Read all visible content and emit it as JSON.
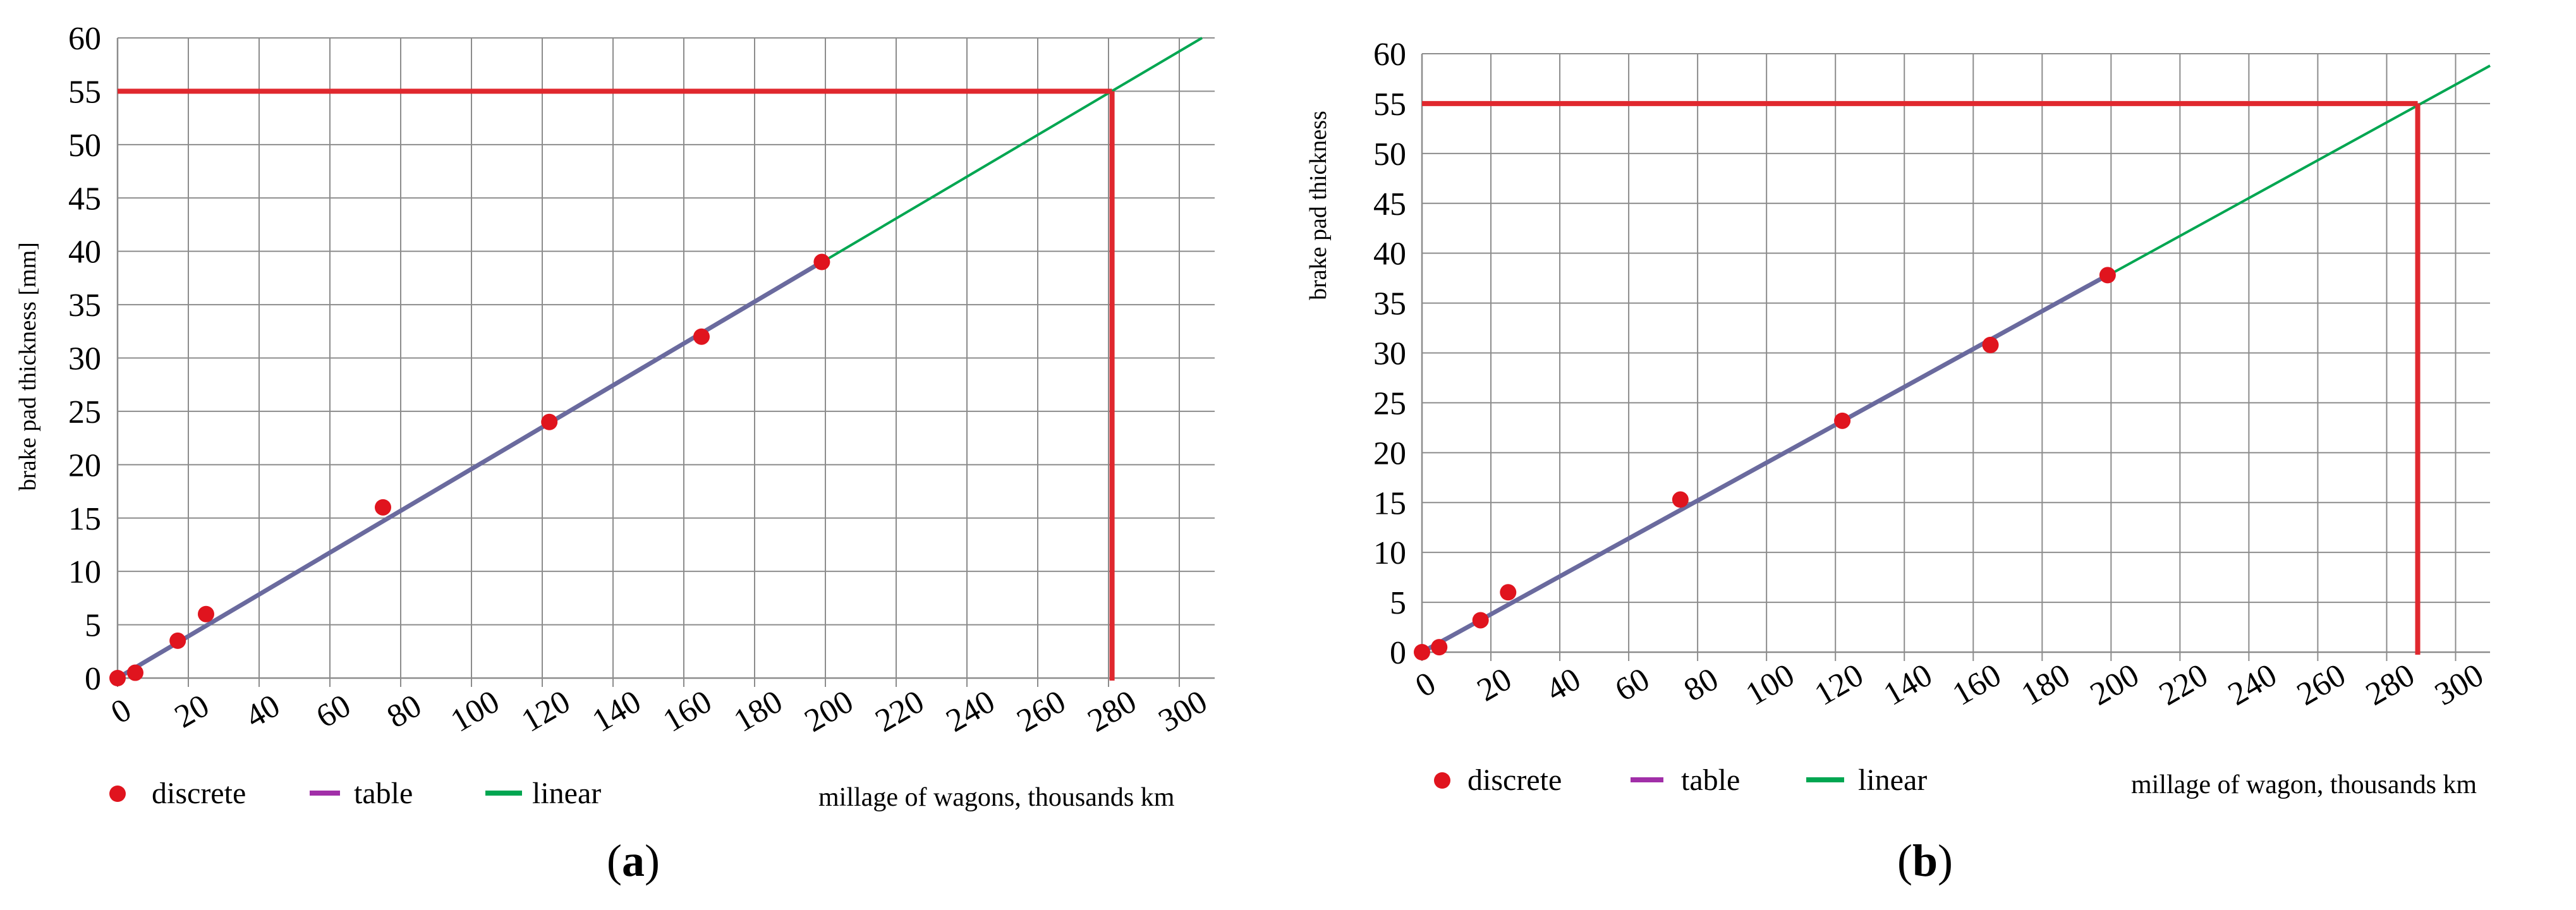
{
  "figure": {
    "panels": [
      "a",
      "b"
    ]
  },
  "colors": {
    "discrete": "#e0141e",
    "table": "#a12fa8",
    "linear": "#00a651",
    "threshold": "#e0282e",
    "grid": "#8c8c8c",
    "fit_line": "#6a6a9e"
  },
  "chart_data": [
    {
      "panel": "a",
      "type": "line",
      "panel_label": "a",
      "ylabel": "brake pad thickness [mm]",
      "xlabel": "millage of wagons, thousands km",
      "xlim": [
        0,
        310
      ],
      "ylim": [
        0,
        60
      ],
      "xticks": [
        0,
        20,
        40,
        60,
        80,
        100,
        120,
        140,
        160,
        180,
        200,
        220,
        240,
        260,
        280,
        300
      ],
      "yticks": [
        0,
        5,
        10,
        15,
        20,
        25,
        30,
        35,
        40,
        45,
        50,
        55,
        60
      ],
      "legend": [
        "discrete",
        "table",
        "linear"
      ],
      "series": [
        {
          "name": "discrete",
          "kind": "scatter",
          "x": [
            0,
            5,
            17,
            25,
            75,
            122,
            165,
            199
          ],
          "y": [
            0,
            0.5,
            3.5,
            6,
            16,
            24,
            32,
            39
          ]
        },
        {
          "name": "table",
          "kind": "line",
          "x": [
            0,
            199
          ],
          "y": [
            0,
            39
          ]
        },
        {
          "name": "linear",
          "kind": "line",
          "x": [
            0,
            310
          ],
          "y": [
            0,
            60.7
          ]
        }
      ],
      "threshold": {
        "y": 55,
        "x": 281
      }
    },
    {
      "panel": "b",
      "type": "line",
      "panel_label": "b",
      "ylabel": "brake pad thickness",
      "xlabel": "millage of wagon, thousands km",
      "xlim": [
        0,
        310
      ],
      "ylim": [
        0,
        60
      ],
      "xticks": [
        0,
        20,
        40,
        60,
        80,
        100,
        120,
        140,
        160,
        180,
        200,
        220,
        240,
        260,
        280,
        300
      ],
      "yticks": [
        0,
        5,
        10,
        15,
        20,
        25,
        30,
        35,
        40,
        45,
        50,
        55,
        60
      ],
      "legend": [
        "discrete",
        "table",
        "linear"
      ],
      "series": [
        {
          "name": "discrete",
          "kind": "scatter",
          "x": [
            0,
            5,
            17,
            25,
            75,
            122,
            165,
            199
          ],
          "y": [
            0,
            0.5,
            3.2,
            6,
            15.3,
            23.2,
            30.8,
            37.8
          ]
        },
        {
          "name": "table",
          "kind": "line",
          "x": [
            0,
            199
          ],
          "y": [
            0,
            37.8
          ]
        },
        {
          "name": "linear",
          "kind": "line",
          "x": [
            0,
            310
          ],
          "y": [
            0,
            58.8
          ]
        }
      ],
      "threshold": {
        "y": 55,
        "x": 289
      }
    }
  ]
}
